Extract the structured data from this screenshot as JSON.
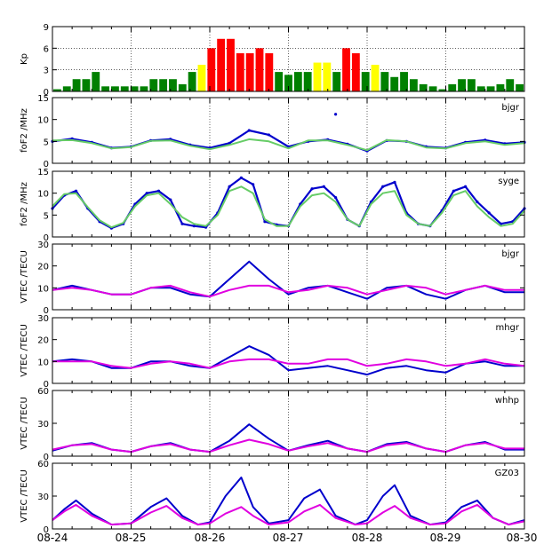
{
  "chart_data": [
    {
      "type": "bar",
      "panel_id": "kp",
      "ylabel": "Kp",
      "ylim": [
        0,
        9
      ],
      "yticks": [
        0,
        3,
        6,
        9
      ],
      "grid_y": [
        3,
        6
      ],
      "bar_colors": {
        "quiet": "#008000",
        "moderate": "#ffff00",
        "storm": "#ff0000"
      },
      "values": [
        0.3,
        0.7,
        1.7,
        1.7,
        2.7,
        0.7,
        0.7,
        0.7,
        0.7,
        0.7,
        1.7,
        1.7,
        1.7,
        1.0,
        2.7,
        3.7,
        6.0,
        7.3,
        7.3,
        5.3,
        5.3,
        6.0,
        5.3,
        2.7,
        2.3,
        2.7,
        2.7,
        4.0,
        4.0,
        2.7,
        6.0,
        5.3,
        2.7,
        3.7,
        2.7,
        2.0,
        2.7,
        1.7,
        1.0,
        0.7,
        0.3,
        1.0,
        1.7,
        1.7,
        0.7,
        0.7,
        1.0,
        1.7,
        1.0
      ]
    },
    {
      "type": "scatter",
      "panel_id": "fof2-bjgr",
      "station": "bjgr",
      "ylabel": "foF2 /MHz",
      "ylim": [
        0,
        15
      ],
      "yticks": [
        0,
        5,
        10,
        15
      ],
      "series": [
        {
          "color": "#0000cc",
          "kind": "points",
          "t": [
            0,
            0.25,
            0.5,
            0.75,
            1,
            1.25,
            1.5,
            1.75,
            2,
            2.25,
            2.5,
            2.75,
            3,
            3.25,
            3.5,
            3.75,
            4,
            4.25,
            4.5,
            4.75,
            5,
            5.25,
            5.5,
            5.75,
            6
          ],
          "y": [
            5,
            5.6,
            4.8,
            3.5,
            3.8,
            5.2,
            5.5,
            4.2,
            3.5,
            4.6,
            7.5,
            6.5,
            3.8,
            5.0,
            5.4,
            4.4,
            2.8,
            5.2,
            5.0,
            3.8,
            3.5,
            4.8,
            5.3,
            4.5,
            4.8
          ]
        },
        {
          "color": "#66cc66",
          "kind": "line",
          "t": [
            0,
            0.25,
            0.5,
            0.75,
            1,
            1.25,
            1.5,
            1.75,
            2,
            2.25,
            2.5,
            2.75,
            3,
            3.25,
            3.5,
            3.75,
            4,
            4.25,
            4.5,
            4.75,
            5,
            5.25,
            5.5,
            5.75,
            6
          ],
          "y": [
            5.2,
            5.3,
            4.6,
            3.4,
            3.7,
            5.1,
            5.2,
            4.0,
            3.2,
            4.2,
            5.5,
            5.0,
            3.4,
            5.2,
            5.2,
            4.2,
            3.0,
            5.3,
            5.0,
            3.6,
            3.4,
            4.6,
            5.0,
            4.2,
            4.6
          ]
        }
      ],
      "outlier": {
        "t": 3.6,
        "y": 11.2
      }
    },
    {
      "type": "scatter",
      "panel_id": "fof2-syge",
      "station": "syge",
      "ylabel": "foF2 /MHz",
      "ylim": [
        0,
        15
      ],
      "yticks": [
        0,
        5,
        10,
        15
      ],
      "series": [
        {
          "color": "#0000cc",
          "kind": "points",
          "t": [
            0,
            0.15,
            0.3,
            0.45,
            0.6,
            0.75,
            0.9,
            1.05,
            1.2,
            1.35,
            1.5,
            1.65,
            1.8,
            1.95,
            2.1,
            2.25,
            2.4,
            2.55,
            2.7,
            2.85,
            3.0,
            3.15,
            3.3,
            3.45,
            3.6,
            3.75,
            3.9,
            4.05,
            4.2,
            4.35,
            4.5,
            4.65,
            4.8,
            4.95,
            5.1,
            5.25,
            5.4,
            5.55,
            5.7,
            5.85,
            6
          ],
          "y": [
            6.5,
            9.5,
            10.5,
            6.5,
            3.5,
            2.0,
            3.0,
            7.5,
            10.0,
            10.5,
            8.5,
            3.0,
            2.5,
            2.2,
            5.5,
            11.5,
            13.5,
            12.0,
            3.5,
            2.8,
            2.5,
            7.5,
            11.0,
            11.5,
            9.0,
            4.0,
            2.5,
            8.0,
            11.5,
            12.5,
            5.5,
            3.0,
            2.5,
            6.0,
            10.5,
            11.5,
            8.0,
            5.5,
            3.0,
            3.5,
            6.5
          ]
        },
        {
          "color": "#66cc66",
          "kind": "line",
          "t": [
            0,
            0.15,
            0.3,
            0.45,
            0.6,
            0.75,
            0.9,
            1.05,
            1.2,
            1.35,
            1.5,
            1.65,
            1.8,
            1.95,
            2.1,
            2.25,
            2.4,
            2.55,
            2.7,
            2.85,
            3.0,
            3.15,
            3.3,
            3.45,
            3.6,
            3.75,
            3.9,
            4.05,
            4.2,
            4.35,
            4.5,
            4.65,
            4.8,
            4.95,
            5.1,
            5.25,
            5.4,
            5.55,
            5.7,
            5.85,
            6
          ],
          "y": [
            7.0,
            9.8,
            10.0,
            6.8,
            3.8,
            2.2,
            3.2,
            7.0,
            9.5,
            10.0,
            7.5,
            4.5,
            3.0,
            2.5,
            5.0,
            10.5,
            11.5,
            10.0,
            4.0,
            2.5,
            2.5,
            7.0,
            9.5,
            10.0,
            8.0,
            4.0,
            2.5,
            7.5,
            10.0,
            10.5,
            5.0,
            3.0,
            2.5,
            5.5,
            9.5,
            10.5,
            7.0,
            4.5,
            2.5,
            3.0,
            6.0
          ]
        }
      ]
    },
    {
      "type": "line",
      "panel_id": "vtec-bjgr",
      "station": "bjgr",
      "ylabel": "VTEC /TECU",
      "ylim": [
        0,
        30
      ],
      "yticks": [
        0,
        10,
        20,
        30
      ],
      "series": [
        {
          "color": "#0000cc",
          "t": [
            0,
            0.25,
            0.5,
            0.75,
            1,
            1.25,
            1.5,
            1.75,
            2,
            2.25,
            2.5,
            2.75,
            3,
            3.25,
            3.5,
            3.75,
            4,
            4.25,
            4.5,
            4.75,
            5,
            5.25,
            5.5,
            5.75,
            6
          ],
          "y": [
            9,
            11,
            9,
            7,
            7,
            10,
            10,
            7,
            6,
            14,
            22,
            14,
            7,
            10,
            11,
            8,
            5,
            10,
            11,
            7,
            5,
            9,
            11,
            8,
            8
          ]
        },
        {
          "color": "#e000e0",
          "t": [
            0,
            0.25,
            0.5,
            0.75,
            1,
            1.25,
            1.5,
            1.75,
            2,
            2.25,
            2.5,
            2.75,
            3,
            3.25,
            3.5,
            3.75,
            4,
            4.25,
            4.5,
            4.75,
            5,
            5.25,
            5.5,
            5.75,
            6
          ],
          "y": [
            9,
            10,
            9,
            7,
            7,
            10,
            11,
            8,
            6,
            9,
            11,
            11,
            8,
            9,
            11,
            10,
            7,
            9,
            11,
            10,
            7,
            9,
            11,
            9,
            9
          ]
        }
      ]
    },
    {
      "type": "line",
      "panel_id": "vtec-mhgr",
      "station": "mhgr",
      "ylabel": "VTEC /TECU",
      "ylim": [
        0,
        30
      ],
      "yticks": [
        0,
        10,
        20,
        30
      ],
      "series": [
        {
          "color": "#0000cc",
          "t": [
            0,
            0.25,
            0.5,
            0.75,
            1,
            1.25,
            1.5,
            1.75,
            2,
            2.25,
            2.5,
            2.75,
            3,
            3.25,
            3.5,
            3.75,
            4,
            4.25,
            4.5,
            4.75,
            5,
            5.25,
            5.5,
            5.75,
            6
          ],
          "y": [
            10,
            11,
            10,
            7,
            7,
            10,
            10,
            8,
            7,
            12,
            17,
            13,
            6,
            7,
            8,
            6,
            4,
            7,
            8,
            6,
            5,
            9,
            10,
            8,
            8
          ]
        },
        {
          "color": "#e000e0",
          "t": [
            0,
            0.25,
            0.5,
            0.75,
            1,
            1.25,
            1.5,
            1.75,
            2,
            2.25,
            2.5,
            2.75,
            3,
            3.25,
            3.5,
            3.75,
            4,
            4.25,
            4.5,
            4.75,
            5,
            5.25,
            5.5,
            5.75,
            6
          ],
          "y": [
            10,
            10,
            10,
            8,
            7,
            9,
            10,
            9,
            7,
            10,
            11,
            11,
            9,
            9,
            11,
            11,
            8,
            9,
            11,
            10,
            8,
            9,
            11,
            9,
            8
          ]
        }
      ]
    },
    {
      "type": "line",
      "panel_id": "vtec-whhp",
      "station": "whhp",
      "ylabel": "VTEC /TECU",
      "ylim": [
        0,
        60
      ],
      "yticks": [
        0,
        30,
        60
      ],
      "series": [
        {
          "color": "#0000cc",
          "t": [
            0,
            0.25,
            0.5,
            0.75,
            1,
            1.25,
            1.5,
            1.75,
            2,
            2.25,
            2.5,
            2.75,
            3,
            3.25,
            3.5,
            3.75,
            4,
            4.25,
            4.5,
            4.75,
            5,
            5.25,
            5.5,
            5.75,
            6
          ],
          "y": [
            5,
            10,
            12,
            6,
            4,
            9,
            12,
            6,
            4,
            14,
            29,
            16,
            5,
            10,
            14,
            7,
            4,
            11,
            13,
            7,
            4,
            10,
            13,
            6,
            6
          ]
        },
        {
          "color": "#e000e0",
          "t": [
            0,
            0.25,
            0.5,
            0.75,
            1,
            1.25,
            1.5,
            1.75,
            2,
            2.25,
            2.5,
            2.75,
            3,
            3.25,
            3.5,
            3.75,
            4,
            4.25,
            4.5,
            4.75,
            5,
            5.25,
            5.5,
            5.75,
            6
          ],
          "y": [
            6,
            10,
            11,
            6,
            4,
            9,
            11,
            6,
            4,
            10,
            15,
            11,
            5,
            9,
            12,
            7,
            4,
            10,
            12,
            7,
            4,
            10,
            12,
            7,
            7
          ]
        }
      ]
    },
    {
      "type": "line",
      "panel_id": "vtec-gz03",
      "station": "GZ03",
      "ylabel": "VTEC /TECU",
      "ylim": [
        0,
        60
      ],
      "yticks": [
        0,
        30,
        60
      ],
      "series": [
        {
          "color": "#0000cc",
          "t": [
            0,
            0.15,
            0.3,
            0.5,
            0.75,
            1,
            1.25,
            1.45,
            1.65,
            1.85,
            2,
            2.2,
            2.4,
            2.55,
            2.75,
            3,
            3.2,
            3.4,
            3.6,
            3.85,
            4,
            4.2,
            4.35,
            4.55,
            4.8,
            5,
            5.2,
            5.4,
            5.6,
            5.8,
            6
          ],
          "y": [
            8,
            18,
            26,
            14,
            4,
            5,
            20,
            28,
            12,
            4,
            6,
            30,
            47,
            20,
            5,
            8,
            28,
            36,
            12,
            4,
            8,
            30,
            40,
            12,
            4,
            6,
            20,
            26,
            10,
            4,
            8
          ]
        },
        {
          "color": "#e000e0",
          "t": [
            0,
            0.15,
            0.3,
            0.5,
            0.75,
            1,
            1.25,
            1.45,
            1.65,
            1.85,
            2,
            2.2,
            2.4,
            2.55,
            2.75,
            3,
            3.2,
            3.4,
            3.6,
            3.85,
            4,
            4.2,
            4.35,
            4.55,
            4.8,
            5,
            5.2,
            5.4,
            5.6,
            5.8,
            6
          ],
          "y": [
            8,
            16,
            22,
            12,
            4,
            5,
            15,
            21,
            10,
            4,
            5,
            14,
            20,
            12,
            4,
            6,
            16,
            22,
            10,
            4,
            5,
            15,
            21,
            10,
            4,
            5,
            16,
            22,
            10,
            4,
            7
          ]
        }
      ]
    }
  ],
  "x_axis": {
    "range": [
      0,
      6
    ],
    "tick_labels": [
      "08-24",
      "08-25",
      "08-26",
      "08-27",
      "08-28",
      "08-29",
      "08-30"
    ]
  }
}
